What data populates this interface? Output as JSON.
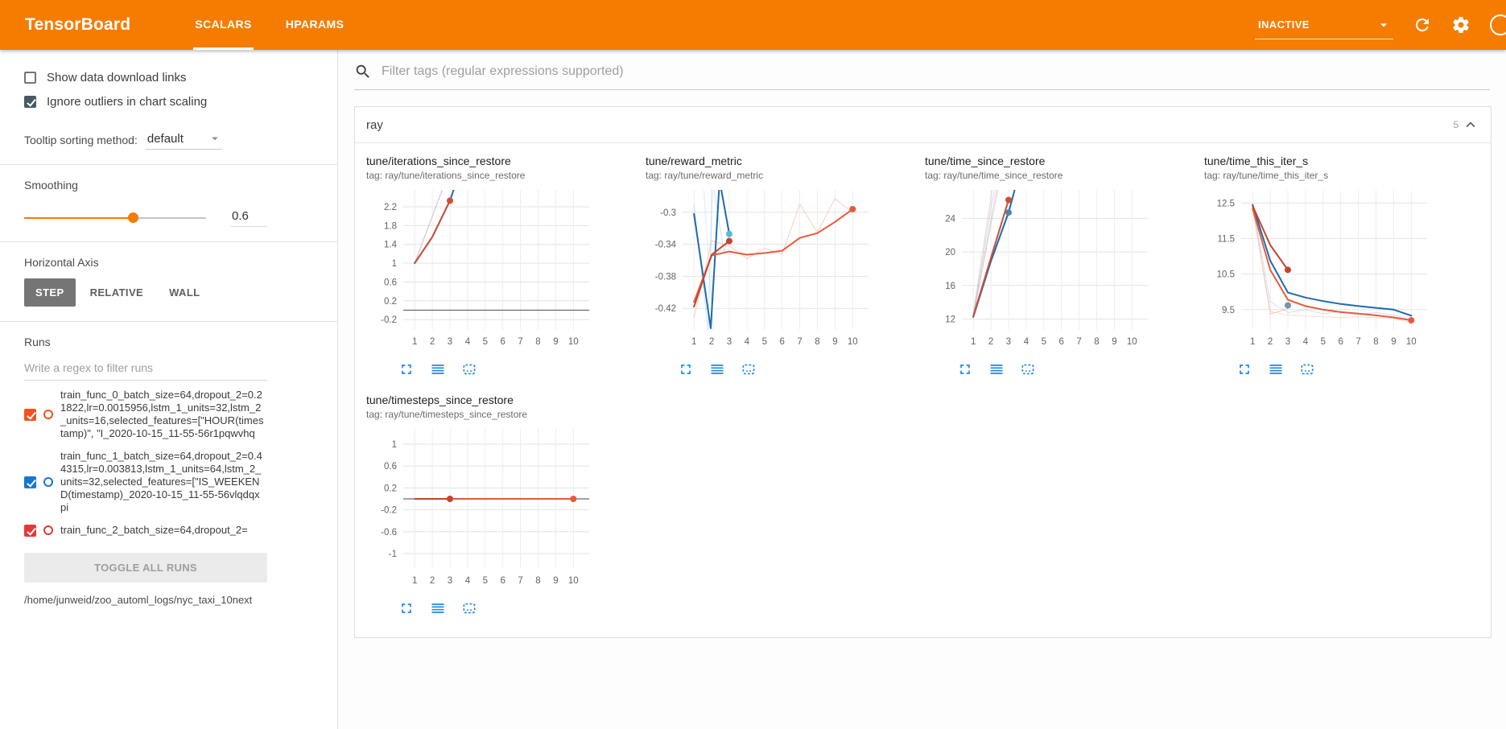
{
  "header": {
    "brand": "TensorBoard",
    "tabs": [
      {
        "label": "SCALARS",
        "active": true
      },
      {
        "label": "HPARAMS",
        "active": false
      }
    ],
    "status": {
      "label": "INACTIVE"
    },
    "icons": [
      "dropdown-caret-icon",
      "refresh-icon",
      "settings-icon",
      "help-icon"
    ],
    "colors": {
      "bar": "#f57c00"
    }
  },
  "sidebar": {
    "checkboxes": [
      {
        "label": "Show data download links",
        "checked": false
      },
      {
        "label": "Ignore outliers in chart scaling",
        "checked": true,
        "color": "#455a64"
      }
    ],
    "tooltip_sort": {
      "label": "Tooltip sorting method:",
      "value": "default"
    },
    "smoothing": {
      "label": "Smoothing",
      "value": "0.6",
      "percent": 60
    },
    "horizontal_axis": {
      "label": "Horizontal Axis",
      "options": [
        {
          "label": "STEP",
          "active": true
        },
        {
          "label": "RELATIVE",
          "active": false
        },
        {
          "label": "WALL",
          "active": false
        }
      ]
    },
    "runs": {
      "label": "Runs",
      "filter_placeholder": "Write a regex to filter runs",
      "items": [
        {
          "name": "train_func_0_batch_size=64,dropout_2=0.21822,lr=0.0015956,lstm_1_units=32,lstm_2_units=16,selected_features=[\"HOUR(timestamp)\", \"I_2020-10-15_11-55-56r1pqwvhq",
          "checked": true,
          "color": "#f4511e"
        },
        {
          "name": "train_func_1_batch_size=64,dropout_2=0.44315,lr=0.003813,lstm_1_units=64,lstm_2_units=32,selected_features=[\"IS_WEEKEND(timestamp)_2020-10-15_11-55-56vlqdqxpi",
          "checked": true,
          "color": "#1976d2"
        },
        {
          "name": "train_func_2_batch_size=64,dropout_2=",
          "checked": true,
          "color": "#e53935"
        }
      ],
      "toggle_all_label": "TOGGLE ALL RUNS",
      "log_path": "/home/junweid/zoo_automl_logs/nyc_taxi_10next"
    }
  },
  "main": {
    "filter_placeholder": "Filter tags (regular expressions supported)",
    "category": {
      "name": "ray",
      "count": "5"
    },
    "chart_tile_icons": [
      "expand-icon",
      "list-icon",
      "selection-box-icon"
    ]
  },
  "chart_data": [
    {
      "type": "line",
      "title": "tune/iterations_since_restore",
      "tag": "tag: ray/tune/iterations_since_restore",
      "xlim": [
        0.35,
        10.9
      ],
      "ylim": [
        -0.42,
        2.56
      ],
      "yticks": [
        "2.2",
        "1.8",
        "1.4",
        "1",
        "0.6",
        "0.2",
        "-0.2"
      ],
      "xticks": [
        1,
        2,
        3,
        4,
        5,
        6,
        7,
        8,
        9,
        10
      ],
      "grid": true,
      "legend_position": "none",
      "zero_line": true,
      "series": [
        {
          "name": "train_func_0 (raw)",
          "color": "#f0a492",
          "opacity": 0.55,
          "width": 1.2,
          "points": [
            [
              1,
              1
            ],
            [
              2,
              2
            ],
            [
              3,
              3
            ]
          ]
        },
        {
          "name": "train_func_1 (raw)",
          "color": "#a9cbe8",
          "opacity": 0.5,
          "width": 1.2,
          "points": [
            [
              1,
              1
            ],
            [
              2,
              2
            ],
            [
              3,
              3
            ],
            [
              4,
              4
            ]
          ]
        },
        {
          "name": "train_func_1 (smoothed)",
          "color": "#1c6ab0",
          "opacity": 1,
          "width": 2,
          "points": [
            [
              1,
              1
            ],
            [
              2,
              1.56
            ],
            [
              3,
              2.33
            ],
            [
              3.7,
              3.1
            ]
          ]
        },
        {
          "name": "train_func_0 (smoothed)",
          "color": "#d04f35",
          "opacity": 1,
          "width": 2,
          "points": [
            [
              1,
              1
            ],
            [
              2,
              1.56
            ],
            [
              3,
              2.33
            ]
          ]
        }
      ],
      "end_dots": [
        {
          "x": 3,
          "y": 2.33,
          "color": "#d04f35"
        }
      ]
    },
    {
      "type": "line",
      "title": "tune/reward_metric",
      "tag": "tag: ray/tune/reward_metric",
      "xlim": [
        0.35,
        10.9
      ],
      "ylim": [
        -0.447,
        -0.272
      ],
      "yticks": [
        "-0.3",
        "-0.34",
        "-0.38",
        "-0.42"
      ],
      "xticks": [
        1,
        2,
        3,
        4,
        5,
        6,
        7,
        8,
        9,
        10
      ],
      "grid": true,
      "legend_position": "none",
      "zero_line": false,
      "series": [
        {
          "name": "train_func_2 (raw)",
          "color": "#f0a492",
          "opacity": 0.45,
          "width": 1.2,
          "points": [
            [
              1,
              -0.432
            ],
            [
              2,
              -0.336
            ],
            [
              3,
              -0.342
            ],
            [
              4,
              -0.358
            ],
            [
              5,
              -0.345
            ],
            [
              6,
              -0.352
            ],
            [
              7,
              -0.29
            ],
            [
              8,
              -0.325
            ],
            [
              9,
              -0.283
            ],
            [
              10,
              -0.3
            ]
          ]
        },
        {
          "name": "train_func_1 (raw)",
          "color": "#a9cbe8",
          "opacity": 0.5,
          "width": 1.2,
          "points": [
            [
              1,
              -0.29
            ],
            [
              1.8,
              -0.447
            ],
            [
              2.05,
              -0.26
            ],
            [
              2.7,
              -0.35
            ],
            [
              3,
              -0.327
            ]
          ]
        },
        {
          "name": "train_func_1 (raw-b)",
          "color": "#bfe0f2",
          "opacity": 0.5,
          "width": 1.2,
          "points": [
            [
              1.55,
              -0.272
            ],
            [
              2.1,
              -0.447
            ]
          ]
        },
        {
          "name": "train_func_1 (smoothed)",
          "color": "#1c6ab0",
          "opacity": 1,
          "width": 2,
          "points": [
            [
              1,
              -0.302
            ],
            [
              1.95,
              -0.445
            ],
            [
              2.45,
              -0.26
            ],
            [
              3,
              -0.327
            ]
          ]
        },
        {
          "name": "train_func_2 (smoothed)",
          "color": "#e8593c",
          "opacity": 1,
          "width": 2,
          "points": [
            [
              1,
              -0.412
            ],
            [
              2,
              -0.354
            ],
            [
              3,
              -0.349
            ],
            [
              4,
              -0.353
            ],
            [
              5,
              -0.351
            ],
            [
              6,
              -0.348
            ],
            [
              7,
              -0.332
            ],
            [
              8,
              -0.326
            ],
            [
              9,
              -0.312
            ],
            [
              10,
              -0.296
            ]
          ]
        },
        {
          "name": "train_func_0 (smoothed)",
          "color": "#c2452e",
          "opacity": 1,
          "width": 2,
          "points": [
            [
              1,
              -0.418
            ],
            [
              2,
              -0.353
            ],
            [
              3,
              -0.336
            ]
          ]
        }
      ],
      "end_dots": [
        {
          "x": 3,
          "y": -0.336,
          "color": "#c2452e"
        },
        {
          "x": 3,
          "y": -0.327,
          "color": "#56b8d8"
        },
        {
          "x": 10,
          "y": -0.296,
          "color": "#e8593c"
        }
      ]
    },
    {
      "type": "line",
      "title": "tune/time_since_restore",
      "tag": "tag: ray/tune/time_since_restore",
      "xlim": [
        0.35,
        10.9
      ],
      "ylim": [
        10.7,
        27.4
      ],
      "yticks": [
        "24",
        "20",
        "16",
        "12"
      ],
      "xticks": [
        1,
        2,
        3,
        4,
        5,
        6,
        7,
        8,
        9,
        10
      ],
      "grid": true,
      "legend_position": "none",
      "zero_line": false,
      "series": [
        {
          "name": "other-run (raw)",
          "color": "#b0b0b0",
          "opacity": 0.4,
          "width": 1.2,
          "points": [
            [
              1,
              12.6
            ],
            [
              2,
              26.5
            ],
            [
              2.3,
              31
            ]
          ]
        },
        {
          "name": "other-run2 (raw)",
          "color": "#b5a8d0",
          "opacity": 0.4,
          "width": 1.2,
          "points": [
            [
              1,
              12.5
            ],
            [
              2,
              25.2
            ],
            [
              2.6,
              32
            ]
          ]
        },
        {
          "name": "train_func_0 (raw)",
          "color": "#f0a492",
          "opacity": 0.5,
          "width": 1.2,
          "points": [
            [
              1,
              12.35
            ],
            [
              2,
              23.8
            ],
            [
              2.9,
              34
            ]
          ]
        },
        {
          "name": "train_func_1 (raw)",
          "color": "#a9cbe8",
          "opacity": 0.5,
          "width": 1.2,
          "points": [
            [
              1,
              12.25
            ],
            [
              2,
              23.2
            ],
            [
              3,
              33.5
            ]
          ]
        },
        {
          "name": "train_func_1 (smoothed)",
          "color": "#1c6ab0",
          "opacity": 1,
          "width": 2,
          "points": [
            [
              1,
              12.25
            ],
            [
              2,
              18.9
            ],
            [
              3,
              24.7
            ],
            [
              3.5,
              28.6
            ]
          ]
        },
        {
          "name": "train_func_0 (smoothed)",
          "color": "#d04f35",
          "opacity": 1,
          "width": 2,
          "points": [
            [
              1,
              12.35
            ],
            [
              2,
              19.3
            ],
            [
              3,
              26.2
            ]
          ]
        }
      ],
      "end_dots": [
        {
          "x": 3,
          "y": 26.2,
          "color": "#d04f35"
        },
        {
          "x": 3,
          "y": 24.7,
          "color": "#4a85b5"
        }
      ]
    },
    {
      "type": "line",
      "title": "tune/time_this_iter_s",
      "tag": "tag: ray/tune/time_this_iter_s",
      "xlim": [
        0.35,
        10.9
      ],
      "ylim": [
        8.93,
        12.87
      ],
      "yticks": [
        "12.5",
        "11.5",
        "10.5",
        "9.5"
      ],
      "xticks": [
        1,
        2,
        3,
        4,
        5,
        6,
        7,
        8,
        9,
        10
      ],
      "grid": true,
      "legend_position": "none",
      "zero_line": false,
      "series": [
        {
          "name": "train_func_0 (raw)",
          "color": "#f0a492",
          "opacity": 0.5,
          "width": 1.2,
          "points": [
            [
              1,
              12.4
            ],
            [
              2,
              9.38
            ],
            [
              3,
              9.52
            ]
          ]
        },
        {
          "name": "train_func_1 (raw)",
          "color": "#a9cbe8",
          "opacity": 0.5,
          "width": 1.2,
          "points": [
            [
              1,
              12.45
            ],
            [
              2,
              9.72
            ],
            [
              3,
              9.42
            ],
            [
              4,
              9.5
            ],
            [
              5,
              9.38
            ],
            [
              6,
              9.45
            ],
            [
              7,
              9.36
            ],
            [
              8,
              9.42
            ],
            [
              9,
              9.35
            ],
            [
              10,
              9.22
            ]
          ]
        },
        {
          "name": "train_func_2 (raw)",
          "color": "#f6c0a0",
          "opacity": 0.45,
          "width": 1.2,
          "points": [
            [
              1,
              12.35
            ],
            [
              2,
              9.45
            ],
            [
              3,
              9.35
            ],
            [
              4,
              9.32
            ],
            [
              5,
              9.3
            ],
            [
              6,
              9.28
            ],
            [
              7,
              9.3
            ],
            [
              8,
              9.27
            ],
            [
              9,
              9.25
            ],
            [
              10,
              9.12
            ]
          ]
        },
        {
          "name": "train_func_1 (smoothed)",
          "color": "#1c6ab0",
          "opacity": 1,
          "width": 2,
          "points": [
            [
              1,
              12.45
            ],
            [
              2,
              10.88
            ],
            [
              3,
              9.98
            ],
            [
              4,
              9.84
            ],
            [
              5,
              9.74
            ],
            [
              6,
              9.66
            ],
            [
              7,
              9.6
            ],
            [
              8,
              9.55
            ],
            [
              9,
              9.5
            ],
            [
              10,
              9.33
            ]
          ]
        },
        {
          "name": "train_func_2 (smoothed)",
          "color": "#e8593c",
          "opacity": 1,
          "width": 2,
          "points": [
            [
              1,
              12.35
            ],
            [
              2,
              10.62
            ],
            [
              3,
              9.78
            ],
            [
              4,
              9.6
            ],
            [
              5,
              9.5
            ],
            [
              6,
              9.43
            ],
            [
              7,
              9.39
            ],
            [
              8,
              9.34
            ],
            [
              9,
              9.28
            ],
            [
              10,
              9.2
            ]
          ]
        },
        {
          "name": "train_func_0 (smoothed)",
          "color": "#c2452e",
          "opacity": 1,
          "width": 2,
          "points": [
            [
              1,
              12.42
            ],
            [
              2,
              11.32
            ],
            [
              3,
              10.62
            ]
          ]
        }
      ],
      "end_dots": [
        {
          "x": 3,
          "y": 10.62,
          "color": "#c2452e"
        },
        {
          "x": 3,
          "y": 9.62,
          "color": "#7596ab"
        },
        {
          "x": 10,
          "y": 9.2,
          "color": "#e8593c"
        }
      ]
    },
    {
      "type": "line",
      "title": "tune/timesteps_since_restore",
      "tag": "tag: ray/tune/timesteps_since_restore",
      "xlim": [
        0.35,
        10.9
      ],
      "ylim": [
        -1.28,
        1.28
      ],
      "yticks": [
        "1",
        "0.6",
        "0.2",
        "-0.2",
        "-0.6",
        "-1"
      ],
      "xticks": [
        1,
        2,
        3,
        4,
        5,
        6,
        7,
        8,
        9,
        10
      ],
      "grid": true,
      "legend_position": "none",
      "zero_line": true,
      "series": [
        {
          "name": "train_func_2 (smoothed)",
          "color": "#e8593c",
          "opacity": 1,
          "width": 2,
          "points": [
            [
              1,
              0
            ],
            [
              10,
              0
            ]
          ]
        },
        {
          "name": "train_func_0 (smoothed)",
          "color": "#c2452e",
          "opacity": 1,
          "width": 2,
          "points": [
            [
              1,
              0
            ],
            [
              3,
              0
            ]
          ]
        }
      ],
      "end_dots": [
        {
          "x": 3,
          "y": 0,
          "color": "#c2452e"
        },
        {
          "x": 10,
          "y": 0,
          "color": "#e8593c"
        }
      ]
    }
  ]
}
